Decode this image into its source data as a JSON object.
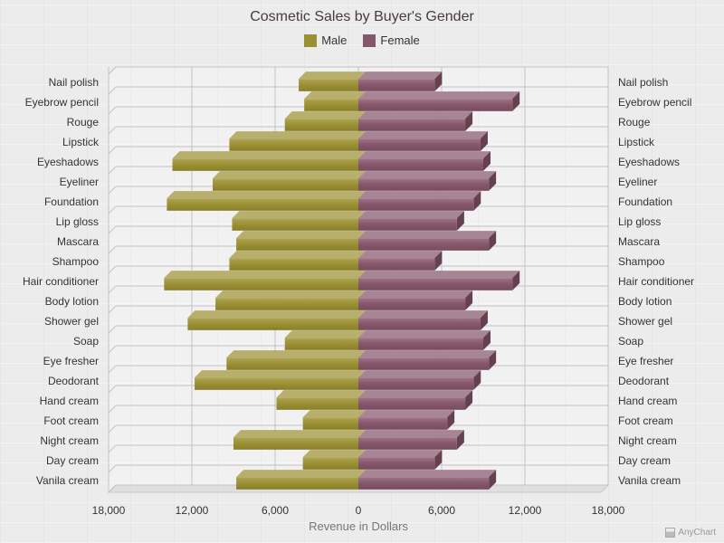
{
  "chart_data": {
    "type": "bar",
    "orientation": "horizontal-mirrored",
    "title": "Cosmetic Sales by Buyer's Gender",
    "xlabel": "Revenue in Dollars",
    "ylabel": "",
    "xlim": [
      -18000,
      18000
    ],
    "x_ticks": [
      -18000,
      -12000,
      -6000,
      0,
      6000,
      12000,
      18000
    ],
    "x_tick_labels": [
      "18,000",
      "12,000",
      "6,000",
      "0",
      "6,000",
      "12,000",
      "18,000"
    ],
    "legend_position": "top-center",
    "grid": true,
    "categories": [
      "Nail polish",
      "Eyebrow pencil",
      "Rouge",
      "Lipstick",
      "Eyeshadows",
      "Eyeliner",
      "Foundation",
      "Lip gloss",
      "Mascara",
      "Shampoo",
      "Hair conditioner",
      "Body lotion",
      "Shower gel",
      "Soap",
      "Eye fresher",
      "Deodorant",
      "Hand cream",
      "Foot cream",
      "Night cream",
      "Day cream",
      "Vanila cream"
    ],
    "series": [
      {
        "name": "Male",
        "color": "#9b9032",
        "values": [
          4300,
          3900,
          5300,
          9300,
          13400,
          10500,
          13800,
          9100,
          8800,
          9300,
          14000,
          10300,
          12300,
          5300,
          9500,
          11800,
          5900,
          4000,
          9000,
          4000,
          8800
        ]
      },
      {
        "name": "Female",
        "color": "#86566a",
        "values": [
          5500,
          11100,
          7700,
          8800,
          9000,
          9400,
          8300,
          7100,
          9400,
          5500,
          11100,
          7700,
          8800,
          9000,
          9400,
          8300,
          7700,
          6400,
          7100,
          5500,
          9400
        ]
      }
    ]
  },
  "credit": {
    "label": "AnyChart",
    "icon": "anychart-logo-icon"
  }
}
